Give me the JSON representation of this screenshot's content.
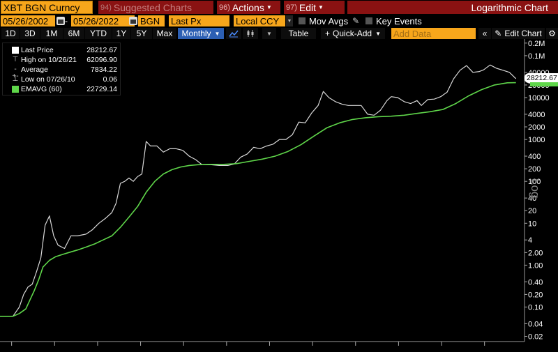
{
  "toolbar": {
    "ticker": "XBT BGN Curncy",
    "suggested": {
      "num": "94)",
      "label": "Suggested Charts"
    },
    "actions": {
      "num": "96)",
      "label": "Actions"
    },
    "edit": {
      "num": "97)",
      "label": "Edit"
    },
    "title": "Logarithmic Chart"
  },
  "params": {
    "start_date": "05/26/2002",
    "end_date": "05/26/2022",
    "source": "BGN",
    "field": "Last Px",
    "currency": "Local CCY",
    "mov_avgs": "Mov Avgs",
    "key_events": "Key Events"
  },
  "periods": {
    "items": [
      "1D",
      "3D",
      "1M",
      "6M",
      "YTD",
      "1Y",
      "5Y",
      "Max"
    ],
    "frequency": "Monthly",
    "table": "Table",
    "quick_add": "Quick-Add",
    "add_data_placeholder": "Add Data",
    "edit_chart": "Edit Chart"
  },
  "legend": {
    "last_price": {
      "label": "Last Price",
      "value": "28212.67"
    },
    "high": {
      "label": "High on 10/26/21",
      "value": "62096.90"
    },
    "average": {
      "label": "Average",
      "value": "7834.22"
    },
    "low": {
      "label": "Low on 07/26/10",
      "value": "0.06"
    },
    "emavg": {
      "label": "EMAVG (60)",
      "value": "22729.14"
    }
  },
  "badges": {
    "price": "28212.67",
    "ema": "22729.14",
    "axis_scale": "Log"
  },
  "colors": {
    "accent_orange": "#f7a61b",
    "menu_red": "#8a1212",
    "price_line": "#d8d8d8",
    "ema_line": "#5fd64a",
    "selected_blue": "#2c5fb3"
  },
  "chart_data": {
    "type": "line",
    "yscale": "log",
    "ylim": [
      0.015,
      250000
    ],
    "yticks": [
      {
        "v": 200000,
        "label": "0.2M"
      },
      {
        "v": 100000,
        "label": "0.1M"
      },
      {
        "v": 40000,
        "label": "40000"
      },
      {
        "v": 20000,
        "label": "20000"
      },
      {
        "v": 10000,
        "label": "10000"
      },
      {
        "v": 4000,
        "label": "4000"
      },
      {
        "v": 2000,
        "label": "2000"
      },
      {
        "v": 1000,
        "label": "1000"
      },
      {
        "v": 400,
        "label": "400"
      },
      {
        "v": 200,
        "label": "200"
      },
      {
        "v": 100,
        "label": "100"
      },
      {
        "v": 40,
        "label": "40"
      },
      {
        "v": 20,
        "label": "20"
      },
      {
        "v": 10,
        "label": "10"
      },
      {
        "v": 4,
        "label": "4"
      },
      {
        "v": 2,
        "label": "2.00"
      },
      {
        "v": 1,
        "label": "1.00"
      },
      {
        "v": 0.4,
        "label": "0.40"
      },
      {
        "v": 0.2,
        "label": "0.20"
      },
      {
        "v": 0.1,
        "label": "0.10"
      },
      {
        "v": 0.04,
        "label": "0.04"
      },
      {
        "v": 0.02,
        "label": "0.02"
      }
    ],
    "xlim": [
      2010.4,
      2022.6
    ],
    "series": [
      {
        "name": "Last Price",
        "color": "#d8d8d8",
        "x": [
          2010.4,
          2010.55,
          2010.7,
          2010.85,
          2010.95,
          2011.05,
          2011.15,
          2011.25,
          2011.35,
          2011.45,
          2011.55,
          2011.65,
          2011.75,
          2011.9,
          2012.05,
          2012.2,
          2012.4,
          2012.55,
          2012.7,
          2012.85,
          2013.0,
          2013.1,
          2013.2,
          2013.3,
          2013.4,
          2013.5,
          2013.6,
          2013.7,
          2013.8,
          2013.9,
          2014.05,
          2014.2,
          2014.35,
          2014.5,
          2014.65,
          2014.8,
          2014.95,
          2015.1,
          2015.3,
          2015.5,
          2015.7,
          2015.85,
          2016.0,
          2016.15,
          2016.3,
          2016.45,
          2016.6,
          2016.75,
          2016.9,
          2017.05,
          2017.2,
          2017.35,
          2017.5,
          2017.65,
          2017.8,
          2017.92,
          2018.05,
          2018.2,
          2018.35,
          2018.5,
          2018.65,
          2018.8,
          2018.95,
          2019.1,
          2019.25,
          2019.4,
          2019.5,
          2019.65,
          2019.8,
          2019.95,
          2020.1,
          2020.2,
          2020.35,
          2020.5,
          2020.65,
          2020.8,
          2020.95,
          2021.1,
          2021.25,
          2021.4,
          2021.55,
          2021.65,
          2021.8,
          2021.95,
          2022.1,
          2022.25,
          2022.4
        ],
        "values": [
          0.06,
          0.06,
          0.06,
          0.1,
          0.2,
          0.3,
          0.35,
          0.7,
          1.5,
          9,
          15,
          5,
          3,
          2.5,
          5,
          5,
          5.5,
          7,
          10,
          13,
          18,
          30,
          90,
          100,
          120,
          100,
          130,
          150,
          900,
          700,
          700,
          500,
          600,
          600,
          550,
          400,
          330,
          250,
          250,
          240,
          240,
          260,
          380,
          450,
          650,
          600,
          700,
          770,
          1000,
          1000,
          1300,
          2600,
          2500,
          4300,
          6500,
          14000,
          10000,
          8000,
          7000,
          6500,
          6500,
          6500,
          4000,
          3800,
          5000,
          8500,
          10500,
          10000,
          8000,
          7200,
          8500,
          6500,
          9000,
          9200,
          10500,
          13500,
          28000,
          45000,
          58000,
          40000,
          42000,
          46000,
          60000,
          50000,
          45000,
          40000,
          28212.67
        ]
      },
      {
        "name": "EMAVG (60)",
        "color": "#5fd64a",
        "x": [
          2010.4,
          2010.55,
          2010.7,
          2010.85,
          2011.0,
          2011.1,
          2011.2,
          2011.3,
          2011.4,
          2011.55,
          2011.7,
          2011.85,
          2012.0,
          2012.2,
          2012.4,
          2012.6,
          2012.8,
          2013.0,
          2013.2,
          2013.4,
          2013.6,
          2013.8,
          2014.0,
          2014.2,
          2014.4,
          2014.6,
          2014.8,
          2015.0,
          2015.3,
          2015.6,
          2015.9,
          2016.2,
          2016.5,
          2016.8,
          2017.1,
          2017.4,
          2017.7,
          2018.0,
          2018.3,
          2018.6,
          2018.9,
          2019.2,
          2019.5,
          2019.8,
          2020.1,
          2020.4,
          2020.7,
          2021.0,
          2021.3,
          2021.6,
          2021.9,
          2022.2,
          2022.4
        ],
        "values": [
          0.06,
          0.06,
          0.06,
          0.07,
          0.09,
          0.15,
          0.25,
          0.45,
          0.9,
          1.3,
          1.6,
          1.8,
          2.0,
          2.3,
          2.7,
          3.2,
          4,
          5,
          8,
          14,
          25,
          55,
          100,
          150,
          190,
          220,
          240,
          250,
          255,
          255,
          265,
          300,
          340,
          400,
          520,
          750,
          1200,
          1900,
          2500,
          3000,
          3300,
          3500,
          3600,
          3800,
          4200,
          4600,
          5200,
          7200,
          11000,
          15500,
          20000,
          22500,
          22729.14
        ]
      }
    ],
    "xticks": [
      2010.67,
      2011.67,
      2012.67,
      2013.67,
      2014.67,
      2015.67,
      2016.67,
      2017.67,
      2018.67,
      2019.67,
      2020.67,
      2021.67
    ]
  }
}
